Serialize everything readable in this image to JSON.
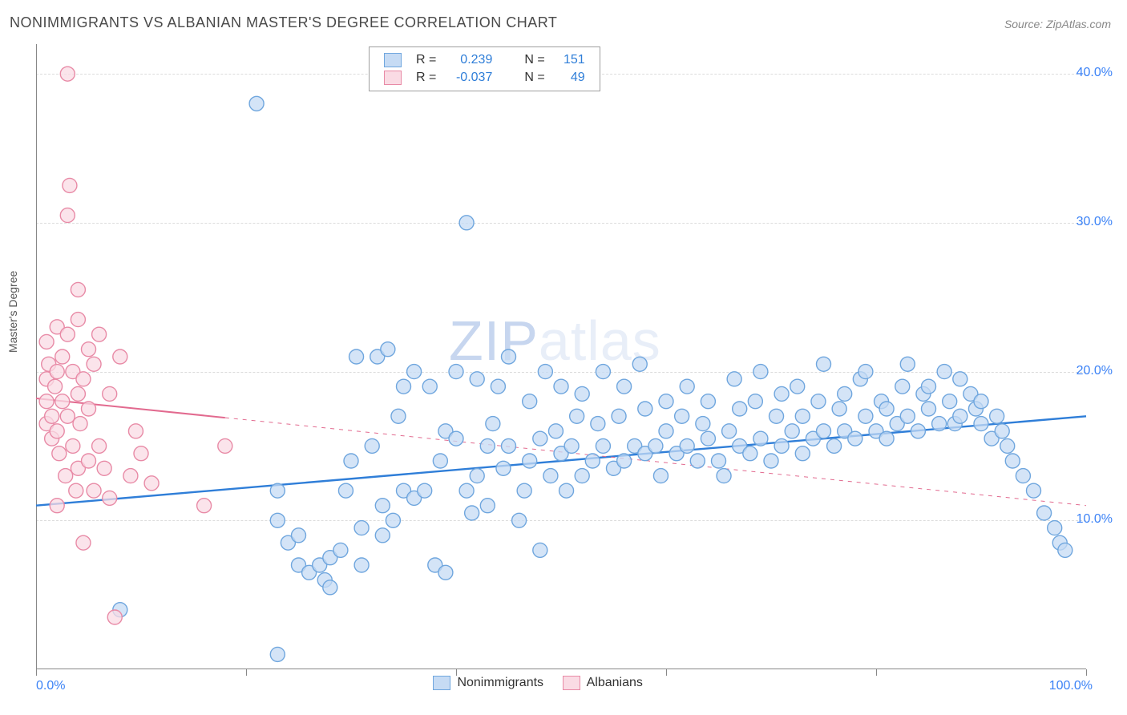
{
  "title": "NONIMMIGRANTS VS ALBANIAN MASTER'S DEGREE CORRELATION CHART",
  "source": "Source: ZipAtlas.com",
  "ylabel": "Master's Degree",
  "watermark_left": "ZIP",
  "watermark_right": "atlas",
  "source_url_text": "ZipAtlas.com",
  "chart": {
    "type": "scatter",
    "xlim": [
      0,
      100
    ],
    "ylim": [
      0,
      42
    ],
    "x_tick_positions": [
      0,
      20,
      40,
      60,
      80,
      100
    ],
    "x_ticklabels_shown": {
      "0": "0.0%",
      "100": "100.0%"
    },
    "y_gridlines": [
      10,
      20,
      30,
      40
    ],
    "y_ticklabels": {
      "10": "10.0%",
      "20": "20.0%",
      "30": "30.0%",
      "40": "40.0%"
    },
    "background_color": "#ffffff",
    "grid_color": "#dcdcdc",
    "axis_color": "#888888",
    "marker_radius": 9,
    "marker_stroke_width": 1.4,
    "series": [
      {
        "name": "Nonimmigrants",
        "fill": "#c6dbf4",
        "stroke": "#6fa6de",
        "fill_opacity": 0.75,
        "R": "0.239",
        "N": "151",
        "trend": {
          "x1": 0,
          "y1": 11.0,
          "x2": 100,
          "y2": 17.0,
          "solid_until_x": 100,
          "color": "#2f7ed8",
          "width": 2.4
        },
        "points": [
          [
            8,
            4
          ],
          [
            21,
            38
          ],
          [
            23,
            1
          ],
          [
            23,
            10
          ],
          [
            23,
            12
          ],
          [
            24,
            8.5
          ],
          [
            25,
            7
          ],
          [
            25,
            9
          ],
          [
            26,
            6.5
          ],
          [
            27,
            7
          ],
          [
            27.5,
            6
          ],
          [
            28,
            5.5
          ],
          [
            28,
            7.5
          ],
          [
            29,
            8
          ],
          [
            29.5,
            12
          ],
          [
            30,
            14
          ],
          [
            30.5,
            21
          ],
          [
            31,
            7
          ],
          [
            31,
            9.5
          ],
          [
            32,
            15
          ],
          [
            32.5,
            21
          ],
          [
            33,
            9
          ],
          [
            33,
            11
          ],
          [
            33.5,
            21.5
          ],
          [
            34,
            10
          ],
          [
            34.5,
            17
          ],
          [
            35,
            12
          ],
          [
            35,
            19
          ],
          [
            36,
            11.5
          ],
          [
            36,
            20
          ],
          [
            37,
            12
          ],
          [
            37.5,
            19
          ],
          [
            38,
            7
          ],
          [
            38.5,
            14
          ],
          [
            39,
            6.5
          ],
          [
            39,
            16
          ],
          [
            40,
            15.5
          ],
          [
            40,
            20
          ],
          [
            41,
            12
          ],
          [
            41,
            30
          ],
          [
            41.5,
            10.5
          ],
          [
            42,
            13
          ],
          [
            42,
            19.5
          ],
          [
            43,
            11
          ],
          [
            43,
            15
          ],
          [
            43.5,
            16.5
          ],
          [
            44,
            19
          ],
          [
            44.5,
            13.5
          ],
          [
            45,
            15
          ],
          [
            45,
            21
          ],
          [
            46,
            10
          ],
          [
            46.5,
            12
          ],
          [
            47,
            14
          ],
          [
            47,
            18
          ],
          [
            48,
            8
          ],
          [
            48,
            15.5
          ],
          [
            48.5,
            20
          ],
          [
            49,
            13
          ],
          [
            49.5,
            16
          ],
          [
            50,
            14.5
          ],
          [
            50,
            19
          ],
          [
            50.5,
            12
          ],
          [
            51,
            15
          ],
          [
            51.5,
            17
          ],
          [
            52,
            13
          ],
          [
            52,
            18.5
          ],
          [
            53,
            14
          ],
          [
            53.5,
            16.5
          ],
          [
            54,
            15
          ],
          [
            54,
            20
          ],
          [
            55,
            13.5
          ],
          [
            55.5,
            17
          ],
          [
            56,
            14
          ],
          [
            56,
            19
          ],
          [
            57,
            15
          ],
          [
            57.5,
            20.5
          ],
          [
            58,
            14.5
          ],
          [
            58,
            17.5
          ],
          [
            59,
            15
          ],
          [
            59.5,
            13
          ],
          [
            60,
            16
          ],
          [
            60,
            18
          ],
          [
            61,
            14.5
          ],
          [
            61.5,
            17
          ],
          [
            62,
            15
          ],
          [
            62,
            19
          ],
          [
            63,
            14
          ],
          [
            63.5,
            16.5
          ],
          [
            64,
            15.5
          ],
          [
            64,
            18
          ],
          [
            65,
            14
          ],
          [
            65.5,
            13
          ],
          [
            66,
            16
          ],
          [
            66.5,
            19.5
          ],
          [
            67,
            15
          ],
          [
            67,
            17.5
          ],
          [
            68,
            14.5
          ],
          [
            68.5,
            18
          ],
          [
            69,
            15.5
          ],
          [
            69,
            20
          ],
          [
            70,
            14
          ],
          [
            70.5,
            17
          ],
          [
            71,
            15
          ],
          [
            71,
            18.5
          ],
          [
            72,
            16
          ],
          [
            72.5,
            19
          ],
          [
            73,
            14.5
          ],
          [
            73,
            17
          ],
          [
            74,
            15.5
          ],
          [
            74.5,
            18
          ],
          [
            75,
            16
          ],
          [
            75,
            20.5
          ],
          [
            76,
            15
          ],
          [
            76.5,
            17.5
          ],
          [
            77,
            16
          ],
          [
            77,
            18.5
          ],
          [
            78,
            15.5
          ],
          [
            78.5,
            19.5
          ],
          [
            79,
            17
          ],
          [
            79,
            20
          ],
          [
            80,
            16
          ],
          [
            80.5,
            18
          ],
          [
            81,
            15.5
          ],
          [
            81,
            17.5
          ],
          [
            82,
            16.5
          ],
          [
            82.5,
            19
          ],
          [
            83,
            17
          ],
          [
            83,
            20.5
          ],
          [
            84,
            16
          ],
          [
            84.5,
            18.5
          ],
          [
            85,
            17.5
          ],
          [
            85,
            19
          ],
          [
            86,
            16.5
          ],
          [
            86.5,
            20
          ],
          [
            87,
            18
          ],
          [
            87.5,
            16.5
          ],
          [
            88,
            17
          ],
          [
            88,
            19.5
          ],
          [
            89,
            18.5
          ],
          [
            89.5,
            17.5
          ],
          [
            90,
            16.5
          ],
          [
            90,
            18
          ],
          [
            91,
            15.5
          ],
          [
            91.5,
            17
          ],
          [
            92,
            16
          ],
          [
            92.5,
            15
          ],
          [
            93,
            14
          ],
          [
            94,
            13
          ],
          [
            95,
            12
          ],
          [
            96,
            10.5
          ],
          [
            97,
            9.5
          ],
          [
            97.5,
            8.5
          ],
          [
            98,
            8
          ]
        ]
      },
      {
        "name": "Albanians",
        "fill": "#fadbe4",
        "stroke": "#e88aa6",
        "fill_opacity": 0.75,
        "R": "-0.037",
        "N": "49",
        "trend": {
          "x1": 0,
          "y1": 18.2,
          "x2": 100,
          "y2": 11.0,
          "solid_until_x": 18,
          "color": "#e26a8f",
          "width": 2.0
        },
        "points": [
          [
            1,
            19.5
          ],
          [
            1,
            18
          ],
          [
            1,
            16.5
          ],
          [
            1,
            22
          ],
          [
            1.2,
            20.5
          ],
          [
            1.5,
            17
          ],
          [
            1.5,
            15.5
          ],
          [
            1.8,
            19
          ],
          [
            2,
            23
          ],
          [
            2,
            11
          ],
          [
            2,
            16
          ],
          [
            2,
            20
          ],
          [
            2.2,
            14.5
          ],
          [
            2.5,
            18
          ],
          [
            2.5,
            21
          ],
          [
            2.8,
            13
          ],
          [
            3,
            17
          ],
          [
            3,
            22.5
          ],
          [
            3,
            40
          ],
          [
            3,
            30.5
          ],
          [
            3.2,
            32.5
          ],
          [
            3.5,
            15
          ],
          [
            3.5,
            20
          ],
          [
            3.8,
            12
          ],
          [
            4,
            18.5
          ],
          [
            4,
            25.5
          ],
          [
            4,
            23.5
          ],
          [
            4,
            13.5
          ],
          [
            4.2,
            16.5
          ],
          [
            4.5,
            8.5
          ],
          [
            4.5,
            19.5
          ],
          [
            5,
            14
          ],
          [
            5,
            21.5
          ],
          [
            5,
            17.5
          ],
          [
            5.5,
            12
          ],
          [
            5.5,
            20.5
          ],
          [
            6,
            15
          ],
          [
            6,
            22.5
          ],
          [
            6.5,
            13.5
          ],
          [
            7,
            18.5
          ],
          [
            7,
            11.5
          ],
          [
            7.5,
            3.5
          ],
          [
            8,
            21
          ],
          [
            9,
            13
          ],
          [
            9.5,
            16
          ],
          [
            10,
            14.5
          ],
          [
            11,
            12.5
          ],
          [
            16,
            11
          ],
          [
            18,
            15
          ]
        ]
      }
    ],
    "legend_bottom": [
      {
        "label": "Nonimmigrants",
        "fill": "#c6dbf4",
        "stroke": "#6fa6de"
      },
      {
        "label": "Albanians",
        "fill": "#fadbe4",
        "stroke": "#e88aa6"
      }
    ]
  },
  "legend_top_labels": {
    "R": "R =",
    "N": "N ="
  }
}
